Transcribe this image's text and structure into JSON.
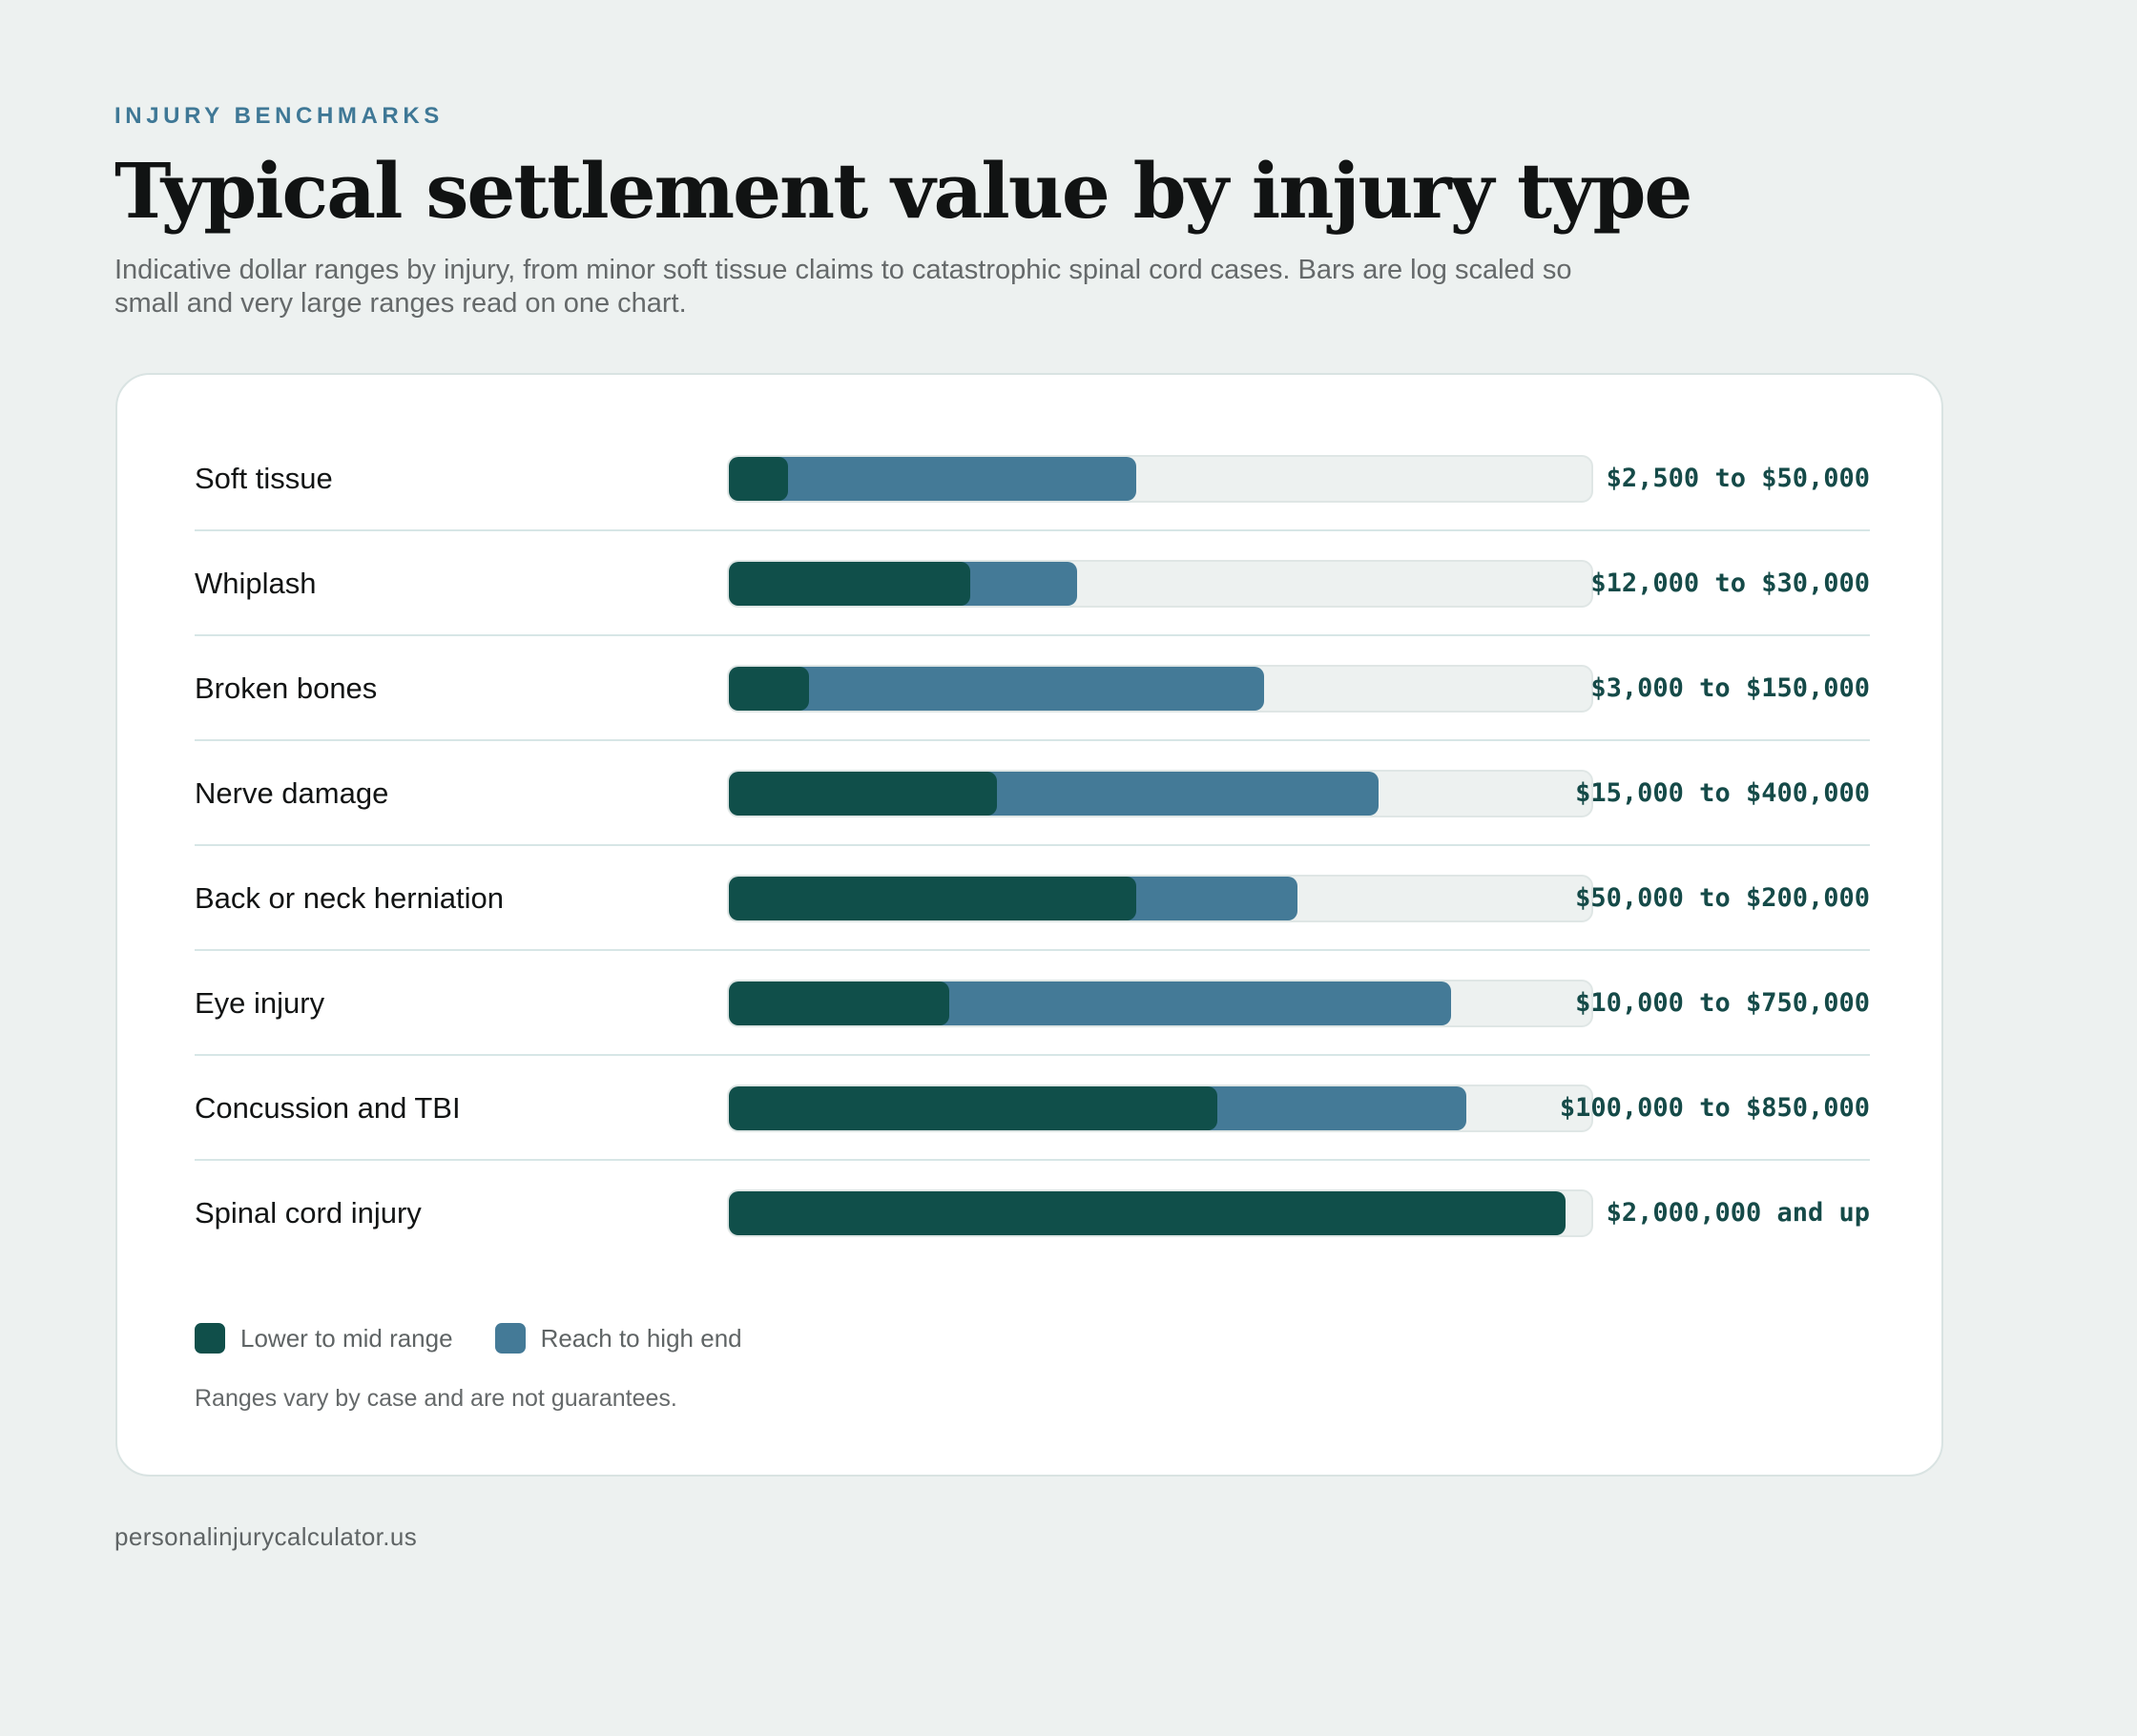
{
  "header": {
    "eyebrow": "INJURY BENCHMARKS",
    "title": "Typical settlement value by injury type",
    "subtitle": "Indicative dollar ranges by injury, from minor soft tissue claims to catastrophic spinal cord cases. Bars are log scaled so small and very large ranges read on one chart."
  },
  "colors": {
    "low": "#104f4a",
    "high": "#447a97",
    "track": "#edf1f0"
  },
  "chart_data": {
    "type": "bar",
    "orientation": "horizontal",
    "scale": "log",
    "categories": [
      "Soft tissue",
      "Whiplash",
      "Broken bones",
      "Nerve damage",
      "Back or neck herniation",
      "Eye injury",
      "Concussion and TBI",
      "Spinal cord injury"
    ],
    "series": [
      {
        "name": "Lower to mid range",
        "values": [
          2500,
          12000,
          3000,
          15000,
          50000,
          10000,
          100000,
          2000000
        ]
      },
      {
        "name": "Reach to high end",
        "values": [
          50000,
          30000,
          150000,
          400000,
          200000,
          750000,
          850000,
          null
        ]
      }
    ],
    "value_labels": [
      "$2,500 to $50,000",
      "$12,000 to $30,000",
      "$3,000 to $150,000",
      "$15,000 to $400,000",
      "$50,000 to $200,000",
      "$10,000 to $750,000",
      "$100,000 to $850,000",
      "$2,000,000 and up"
    ],
    "legend_position": "bottom-left",
    "grid": false
  },
  "note": "Ranges vary by case and are not guarantees.",
  "footer": "personalinjurycalculator.us"
}
